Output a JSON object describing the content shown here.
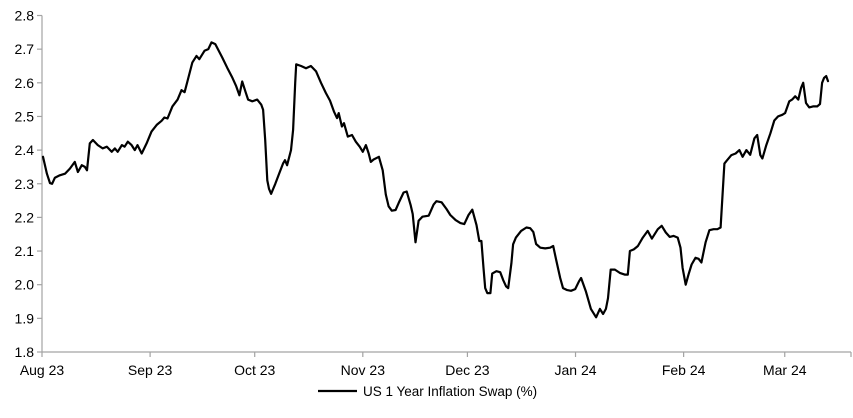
{
  "chart_data": {
    "type": "line",
    "title": "",
    "background": "#ffffff",
    "axis_color": "#a3a3a3",
    "text_color": "#000000",
    "grid": false,
    "y_axis": {
      "min": 1.8,
      "max": 2.8,
      "step": 0.1,
      "tick_labels": [
        "2.8",
        "2.7",
        "2.6",
        "2.5",
        "2.4",
        "2.3",
        "2.2",
        "2.1",
        "2.0",
        "1.9",
        "1.8"
      ]
    },
    "x_axis": {
      "unit": "days since 2023-08-01",
      "range": [
        0,
        232
      ],
      "ticks": [
        {
          "d": 0,
          "label": "Aug 23"
        },
        {
          "d": 31,
          "label": "Sep 23"
        },
        {
          "d": 61,
          "label": "Oct 23"
        },
        {
          "d": 92,
          "label": "Nov 23"
        },
        {
          "d": 122,
          "label": "Dec 23"
        },
        {
          "d": 153,
          "label": "Jan 24"
        },
        {
          "d": 184,
          "label": "Feb 24"
        },
        {
          "d": 213,
          "label": "Mar 24"
        }
      ],
      "end_tick": 232
    },
    "legend": {
      "position": "bottom-center",
      "entries": [
        {
          "label": "US 1 Year Inflation Swap (%)",
          "color": "#000000"
        }
      ]
    },
    "series": [
      {
        "name": "US 1 Year Inflation Swap (%)",
        "color": "#000000",
        "stroke_width": 2.2,
        "points": [
          [
            0.3,
            2.38
          ],
          [
            1.4,
            2.33
          ],
          [
            2.3,
            2.302
          ],
          [
            2.9,
            2.3
          ],
          [
            3.7,
            2.318
          ],
          [
            5.1,
            2.325
          ],
          [
            6.6,
            2.33
          ],
          [
            8,
            2.345
          ],
          [
            9.4,
            2.365
          ],
          [
            10.3,
            2.335
          ],
          [
            11.4,
            2.355
          ],
          [
            12.3,
            2.35
          ],
          [
            12.9,
            2.34
          ],
          [
            13.7,
            2.42
          ],
          [
            14.6,
            2.43
          ],
          [
            16,
            2.415
          ],
          [
            17.4,
            2.405
          ],
          [
            18.6,
            2.41
          ],
          [
            20,
            2.395
          ],
          [
            20.9,
            2.405
          ],
          [
            21.7,
            2.395
          ],
          [
            22.9,
            2.415
          ],
          [
            23.7,
            2.41
          ],
          [
            24.6,
            2.425
          ],
          [
            25.7,
            2.415
          ],
          [
            26.6,
            2.4
          ],
          [
            27.4,
            2.415
          ],
          [
            28.6,
            2.39
          ],
          [
            30,
            2.42
          ],
          [
            31.4,
            2.455
          ],
          [
            32.9,
            2.475
          ],
          [
            34.3,
            2.487
          ],
          [
            35.1,
            2.497
          ],
          [
            36,
            2.494
          ],
          [
            37.4,
            2.53
          ],
          [
            38.9,
            2.55
          ],
          [
            40,
            2.578
          ],
          [
            40.9,
            2.572
          ],
          [
            41.7,
            2.604
          ],
          [
            43.1,
            2.66
          ],
          [
            44.3,
            2.68
          ],
          [
            45.1,
            2.67
          ],
          [
            46.6,
            2.695
          ],
          [
            47.7,
            2.7
          ],
          [
            48.6,
            2.72
          ],
          [
            49.7,
            2.715
          ],
          [
            51.7,
            2.675
          ],
          [
            53.1,
            2.645
          ],
          [
            54.6,
            2.615
          ],
          [
            55.7,
            2.59
          ],
          [
            56.6,
            2.563
          ],
          [
            57.4,
            2.604
          ],
          [
            58.3,
            2.575
          ],
          [
            59.1,
            2.55
          ],
          [
            60.3,
            2.545
          ],
          [
            61.7,
            2.55
          ],
          [
            62.9,
            2.535
          ],
          [
            63.4,
            2.52
          ],
          [
            64,
            2.43
          ],
          [
            64.6,
            2.31
          ],
          [
            65.1,
            2.285
          ],
          [
            65.7,
            2.27
          ],
          [
            66.9,
            2.3
          ],
          [
            68,
            2.33
          ],
          [
            69.1,
            2.36
          ],
          [
            69.7,
            2.37
          ],
          [
            70.3,
            2.355
          ],
          [
            71.4,
            2.4
          ],
          [
            72,
            2.46
          ],
          [
            72.6,
            2.6
          ],
          [
            72.9,
            2.655
          ],
          [
            74.3,
            2.65
          ],
          [
            75.7,
            2.643
          ],
          [
            77.1,
            2.65
          ],
          [
            78.6,
            2.634
          ],
          [
            80,
            2.6
          ],
          [
            81.4,
            2.57
          ],
          [
            82.6,
            2.547
          ],
          [
            83.7,
            2.515
          ],
          [
            84.6,
            2.495
          ],
          [
            85.1,
            2.51
          ],
          [
            86,
            2.47
          ],
          [
            86.6,
            2.48
          ],
          [
            87.7,
            2.44
          ],
          [
            88.9,
            2.445
          ],
          [
            90,
            2.425
          ],
          [
            91.1,
            2.41
          ],
          [
            92,
            2.395
          ],
          [
            92.9,
            2.415
          ],
          [
            93.7,
            2.39
          ],
          [
            94.3,
            2.365
          ],
          [
            95.1,
            2.372
          ],
          [
            96.6,
            2.38
          ],
          [
            97.7,
            2.34
          ],
          [
            98.6,
            2.268
          ],
          [
            99.4,
            2.233
          ],
          [
            100.3,
            2.22
          ],
          [
            101.4,
            2.222
          ],
          [
            102.3,
            2.243
          ],
          [
            103.7,
            2.274
          ],
          [
            104.6,
            2.277
          ],
          [
            105.7,
            2.237
          ],
          [
            106.3,
            2.21
          ],
          [
            107.1,
            2.126
          ],
          [
            108,
            2.19
          ],
          [
            109.1,
            2.202
          ],
          [
            110.9,
            2.205
          ],
          [
            112.3,
            2.238
          ],
          [
            113.1,
            2.248
          ],
          [
            114.6,
            2.245
          ],
          [
            116,
            2.225
          ],
          [
            117.1,
            2.207
          ],
          [
            118.6,
            2.192
          ],
          [
            120,
            2.183
          ],
          [
            121.1,
            2.18
          ],
          [
            122.3,
            2.207
          ],
          [
            123.4,
            2.223
          ],
          [
            124.6,
            2.177
          ],
          [
            125.4,
            2.13
          ],
          [
            126,
            2.13
          ],
          [
            126.6,
            2.05
          ],
          [
            127.1,
            1.99
          ],
          [
            127.7,
            1.975
          ],
          [
            128.6,
            1.975
          ],
          [
            129.1,
            2.033
          ],
          [
            130.3,
            2.04
          ],
          [
            131.4,
            2.037
          ],
          [
            132.3,
            2.013
          ],
          [
            133.1,
            1.995
          ],
          [
            133.7,
            1.99
          ],
          [
            134.6,
            2.064
          ],
          [
            135.1,
            2.12
          ],
          [
            135.9,
            2.14
          ],
          [
            137.4,
            2.16
          ],
          [
            138.9,
            2.17
          ],
          [
            140,
            2.168
          ],
          [
            140.9,
            2.157
          ],
          [
            141.7,
            2.121
          ],
          [
            142.9,
            2.11
          ],
          [
            144.3,
            2.108
          ],
          [
            145.7,
            2.11
          ],
          [
            146.6,
            2.115
          ],
          [
            147.4,
            2.076
          ],
          [
            148.6,
            2.02
          ],
          [
            149.4,
            1.99
          ],
          [
            150.6,
            1.984
          ],
          [
            151.7,
            1.982
          ],
          [
            152.9,
            1.987
          ],
          [
            154,
            2.01
          ],
          [
            154.6,
            2.02
          ],
          [
            156,
            1.979
          ],
          [
            157.4,
            1.928
          ],
          [
            158.9,
            1.903
          ],
          [
            160,
            1.928
          ],
          [
            160.9,
            1.913
          ],
          [
            161.7,
            1.928
          ],
          [
            162.3,
            1.96
          ],
          [
            163.1,
            2.045
          ],
          [
            164.3,
            2.045
          ],
          [
            165.7,
            2.035
          ],
          [
            167.1,
            2.03
          ],
          [
            168,
            2.03
          ],
          [
            168.6,
            2.1
          ],
          [
            169.7,
            2.105
          ],
          [
            170.9,
            2.115
          ],
          [
            172.3,
            2.14
          ],
          [
            173.7,
            2.16
          ],
          [
            174.9,
            2.137
          ],
          [
            176.6,
            2.165
          ],
          [
            177.7,
            2.175
          ],
          [
            178.9,
            2.155
          ],
          [
            180,
            2.142
          ],
          [
            181.1,
            2.145
          ],
          [
            182.3,
            2.14
          ],
          [
            183.1,
            2.11
          ],
          [
            183.7,
            2.05
          ],
          [
            184.6,
            2.0
          ],
          [
            185.4,
            2.03
          ],
          [
            186.3,
            2.06
          ],
          [
            187.4,
            2.08
          ],
          [
            188.3,
            2.077
          ],
          [
            189.1,
            2.066
          ],
          [
            190.3,
            2.126
          ],
          [
            191.4,
            2.162
          ],
          [
            192.6,
            2.165
          ],
          [
            193.7,
            2.165
          ],
          [
            194.6,
            2.17
          ],
          [
            195.7,
            2.36
          ],
          [
            196.3,
            2.368
          ],
          [
            197.7,
            2.385
          ],
          [
            198.9,
            2.39
          ],
          [
            200,
            2.4
          ],
          [
            200.9,
            2.38
          ],
          [
            202,
            2.4
          ],
          [
            203.1,
            2.386
          ],
          [
            204.3,
            2.435
          ],
          [
            205.1,
            2.445
          ],
          [
            206,
            2.385
          ],
          [
            206.6,
            2.375
          ],
          [
            207.7,
            2.415
          ],
          [
            208.9,
            2.45
          ],
          [
            210,
            2.488
          ],
          [
            211.1,
            2.5
          ],
          [
            212.3,
            2.505
          ],
          [
            213.1,
            2.51
          ],
          [
            214.3,
            2.545
          ],
          [
            215.1,
            2.55
          ],
          [
            216,
            2.56
          ],
          [
            216.9,
            2.55
          ],
          [
            217.7,
            2.585
          ],
          [
            218.3,
            2.6
          ],
          [
            219.1,
            2.54
          ],
          [
            220,
            2.527
          ],
          [
            221.1,
            2.53
          ],
          [
            222.3,
            2.53
          ],
          [
            223.1,
            2.537
          ],
          [
            223.7,
            2.6
          ],
          [
            224.3,
            2.615
          ],
          [
            224.9,
            2.62
          ],
          [
            225.4,
            2.605
          ]
        ]
      }
    ]
  }
}
